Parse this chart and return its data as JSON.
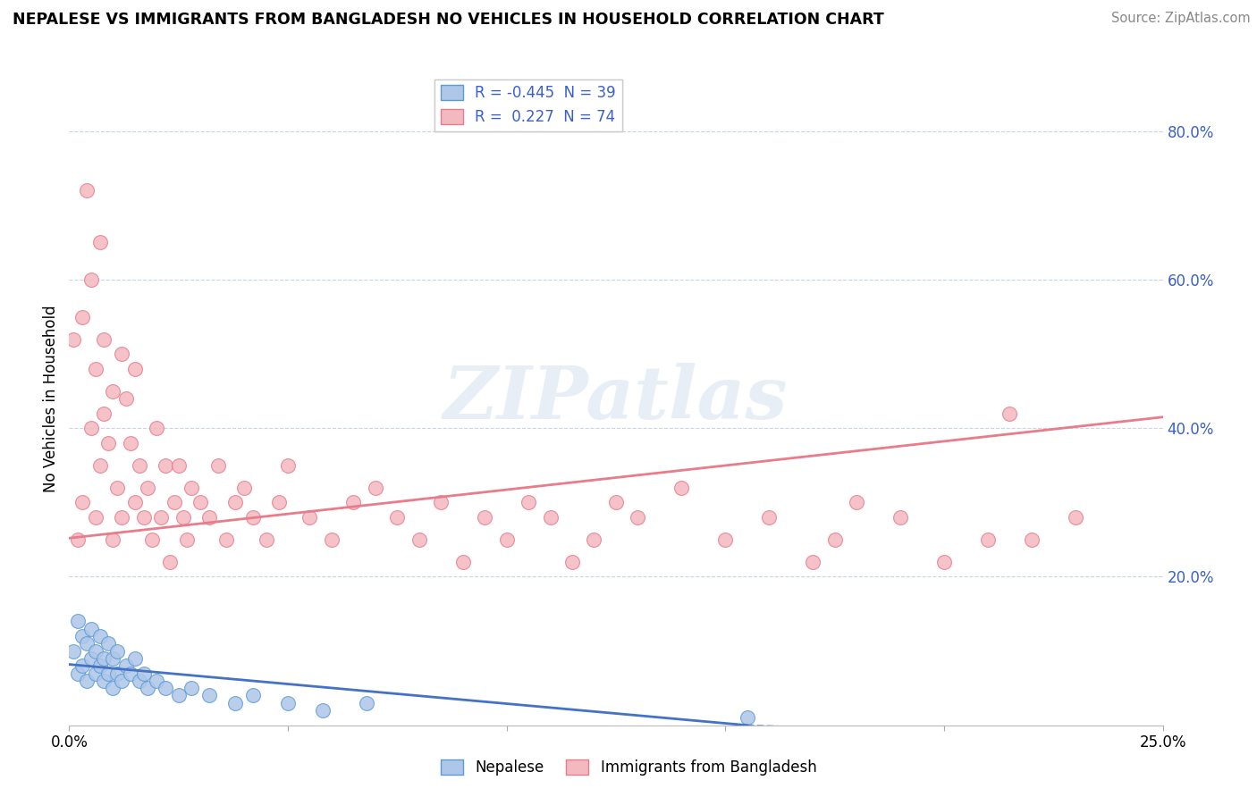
{
  "title": "NEPALESE VS IMMIGRANTS FROM BANGLADESH NO VEHICLES IN HOUSEHOLD CORRELATION CHART",
  "source": "Source: ZipAtlas.com",
  "ylabel": "No Vehicles in Household",
  "xlim": [
    0,
    0.25
  ],
  "ylim": [
    0,
    0.88
  ],
  "yticks": [
    0.0,
    0.2,
    0.4,
    0.6,
    0.8
  ],
  "ytick_labels": [
    "",
    "20.0%",
    "40.0%",
    "60.0%",
    "80.0%"
  ],
  "xticks": [
    0.0,
    0.05,
    0.1,
    0.15,
    0.2,
    0.25
  ],
  "legend_R_entries": [
    {
      "label": "R = -0.445  N = 39",
      "facecolor": "#aec6e8",
      "edgecolor": "#5b9bd5"
    },
    {
      "label": "R =  0.227  N = 74",
      "facecolor": "#f4b8c1",
      "edgecolor": "#e87c8a"
    }
  ],
  "legend_bottom_entries": [
    {
      "label": "Nepalese",
      "facecolor": "#aec6e8",
      "edgecolor": "#5b9bd5"
    },
    {
      "label": "Immigrants from Bangladesh",
      "facecolor": "#f4b8c1",
      "edgecolor": "#e87c8a"
    }
  ],
  "series_nepalese": {
    "color": "#aec6e8",
    "edgecolor": "#5b9bd5",
    "trend_color": "#4472c4"
  },
  "series_bangladesh": {
    "color": "#f4b8c1",
    "edgecolor": "#e87c8a",
    "trend_color": "#e87c8a"
  },
  "watermark_text": "ZIPatlas",
  "background_color": "#ffffff",
  "grid_color": "#c8d4e8",
  "title_color": "#000000",
  "source_color": "#888888",
  "ytick_color": "#3a5fcd",
  "nepalese_x": [
    0.001,
    0.002,
    0.002,
    0.003,
    0.003,
    0.004,
    0.004,
    0.005,
    0.005,
    0.006,
    0.006,
    0.007,
    0.007,
    0.008,
    0.008,
    0.009,
    0.009,
    0.01,
    0.01,
    0.011,
    0.011,
    0.012,
    0.013,
    0.014,
    0.015,
    0.016,
    0.017,
    0.018,
    0.02,
    0.022,
    0.025,
    0.028,
    0.032,
    0.038,
    0.042,
    0.05,
    0.058,
    0.068,
    0.155
  ],
  "nepalese_y": [
    0.1,
    0.07,
    0.14,
    0.08,
    0.12,
    0.06,
    0.11,
    0.09,
    0.13,
    0.07,
    0.1,
    0.08,
    0.12,
    0.06,
    0.09,
    0.07,
    0.11,
    0.05,
    0.09,
    0.07,
    0.1,
    0.06,
    0.08,
    0.07,
    0.09,
    0.06,
    0.07,
    0.05,
    0.06,
    0.05,
    0.04,
    0.05,
    0.04,
    0.03,
    0.04,
    0.03,
    0.02,
    0.03,
    0.01
  ],
  "bangladesh_x": [
    0.001,
    0.002,
    0.003,
    0.003,
    0.004,
    0.005,
    0.005,
    0.006,
    0.006,
    0.007,
    0.007,
    0.008,
    0.008,
    0.009,
    0.01,
    0.01,
    0.011,
    0.012,
    0.012,
    0.013,
    0.014,
    0.015,
    0.015,
    0.016,
    0.017,
    0.018,
    0.019,
    0.02,
    0.021,
    0.022,
    0.023,
    0.024,
    0.025,
    0.026,
    0.027,
    0.028,
    0.03,
    0.032,
    0.034,
    0.036,
    0.038,
    0.04,
    0.042,
    0.045,
    0.048,
    0.05,
    0.055,
    0.06,
    0.065,
    0.07,
    0.075,
    0.08,
    0.085,
    0.09,
    0.095,
    0.1,
    0.105,
    0.11,
    0.115,
    0.12,
    0.125,
    0.13,
    0.14,
    0.15,
    0.16,
    0.17,
    0.175,
    0.18,
    0.19,
    0.2,
    0.21,
    0.215,
    0.22,
    0.23
  ],
  "bangladesh_y": [
    0.52,
    0.25,
    0.3,
    0.55,
    0.72,
    0.4,
    0.6,
    0.48,
    0.28,
    0.35,
    0.65,
    0.42,
    0.52,
    0.38,
    0.25,
    0.45,
    0.32,
    0.5,
    0.28,
    0.44,
    0.38,
    0.3,
    0.48,
    0.35,
    0.28,
    0.32,
    0.25,
    0.4,
    0.28,
    0.35,
    0.22,
    0.3,
    0.35,
    0.28,
    0.25,
    0.32,
    0.3,
    0.28,
    0.35,
    0.25,
    0.3,
    0.32,
    0.28,
    0.25,
    0.3,
    0.35,
    0.28,
    0.25,
    0.3,
    0.32,
    0.28,
    0.25,
    0.3,
    0.22,
    0.28,
    0.25,
    0.3,
    0.28,
    0.22,
    0.25,
    0.3,
    0.28,
    0.32,
    0.25,
    0.28,
    0.22,
    0.25,
    0.3,
    0.28,
    0.22,
    0.25,
    0.42,
    0.25,
    0.28
  ],
  "nep_trend": [
    0.082,
    0.0
  ],
  "ban_trend": [
    0.252,
    0.415
  ]
}
